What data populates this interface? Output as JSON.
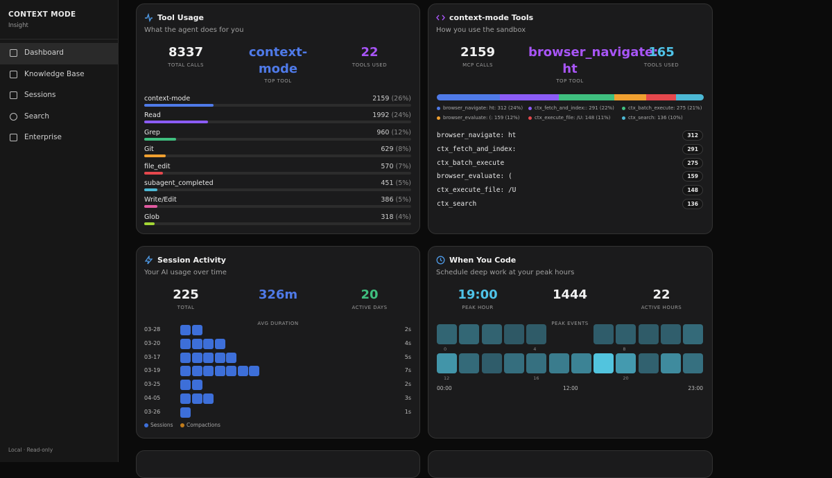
{
  "sidebar": {
    "brand": "CONTEXT MODE",
    "subtitle": "Insight",
    "nav": [
      "Dashboard",
      "Knowledge Base",
      "Sessions",
      "Search",
      "Enterprise"
    ],
    "footer": "Local · Read-only"
  },
  "tool_usage": {
    "title": "Tool Usage",
    "subtitle": "What the agent does for you",
    "stats": [
      {
        "value": "8337",
        "label": "TOTAL CALLS"
      },
      {
        "value": "context-mode",
        "label": "TOP TOOL"
      },
      {
        "value": "22",
        "label": "TOOLS USED"
      }
    ],
    "rows": [
      {
        "name": "context-mode",
        "count": 2159,
        "share": 26,
        "share_label": "(26%)",
        "color": "#4f7ae8"
      },
      {
        "name": "Read",
        "count": 1992,
        "share": 24,
        "share_label": "(24%)",
        "color": "#8b5cf6"
      },
      {
        "name": "Grep",
        "count": 960,
        "share": 12,
        "share_label": "(12%)",
        "color": "#3fbf7f"
      },
      {
        "name": "Git",
        "count": 629,
        "share": 8,
        "share_label": "(8%)",
        "color": "#f0a030"
      },
      {
        "name": "file_edit",
        "count": 570,
        "share": 7,
        "share_label": "(7%)",
        "color": "#e5484d"
      },
      {
        "name": "subagent_completed",
        "count": 451,
        "share": 5,
        "share_label": "(5%)",
        "color": "#4cb8d4"
      },
      {
        "name": "Write/Edit",
        "count": 386,
        "share": 5,
        "share_label": "(5%)",
        "color": "#e05aa0"
      },
      {
        "name": "Glob",
        "count": 318,
        "share": 4,
        "share_label": "(4%)",
        "color": "#a3d635"
      }
    ]
  },
  "sandbox_tools": {
    "title": "context-mode Tools",
    "subtitle": "How you use the sandbox",
    "stats": [
      {
        "value": "2159",
        "label": "MCP CALLS"
      },
      {
        "value": "browser_navigate: ht",
        "label": "TOP TOOL"
      },
      {
        "value": "165",
        "label": "TOOLS USED"
      }
    ],
    "segments": [
      {
        "legend": "browser_navigate: ht: 312 (24%)",
        "count": 312,
        "color": "#4f7ae8"
      },
      {
        "legend": "ctx_fetch_and_index:: 291 (22%)",
        "count": 291,
        "color": "#8b5cf6"
      },
      {
        "legend": "ctx_batch_execute: 275 (21%)",
        "count": 275,
        "color": "#3fbf7f"
      },
      {
        "legend": "browser_evaluate: (: 159 (12%)",
        "count": 159,
        "color": "#f0a030"
      },
      {
        "legend": "ctx_execute_file: /U: 148 (11%)",
        "count": 148,
        "color": "#e5484d"
      },
      {
        "legend": "ctx_search: 136 (10%)",
        "count": 136,
        "color": "#4cb8d4"
      }
    ],
    "list": [
      {
        "name": "browser_navigate: ht",
        "count": 312
      },
      {
        "name": "ctx_fetch_and_index:",
        "count": 291
      },
      {
        "name": "ctx_batch_execute",
        "count": 275
      },
      {
        "name": "browser_evaluate: (",
        "count": 159
      },
      {
        "name": "ctx_execute_file: /U",
        "count": 148
      },
      {
        "name": "ctx_search",
        "count": 136
      }
    ]
  },
  "session_activity": {
    "title": "Session Activity",
    "subtitle": "Your AI usage over time",
    "stats": [
      {
        "value": "225",
        "label": "TOTAL"
      },
      {
        "value": "326m",
        "label": "AVG DURATION"
      },
      {
        "value": "20",
        "label": "ACTIVE DAYS"
      }
    ],
    "rows": [
      {
        "date": "03-28",
        "sessions": 2,
        "label": "2s"
      },
      {
        "date": "03-20",
        "sessions": 4,
        "label": "4s"
      },
      {
        "date": "03-17",
        "sessions": 5,
        "label": "5s"
      },
      {
        "date": "03-19",
        "sessions": 7,
        "label": "7s"
      },
      {
        "date": "03-25",
        "sessions": 2,
        "label": "2s"
      },
      {
        "date": "04-05",
        "sessions": 3,
        "label": "3s"
      },
      {
        "date": "03-26",
        "sessions": 1,
        "label": "1s"
      }
    ],
    "legend": [
      {
        "name": "Sessions",
        "color": "#3d6fd9"
      },
      {
        "name": "Compactions",
        "color": "#c27c1a"
      }
    ]
  },
  "when_you_code": {
    "title": "When You Code",
    "subtitle": "Schedule deep work at your peak hours",
    "stats": [
      {
        "value": "19:00",
        "label": "PEAK HOUR"
      },
      {
        "value": "1444",
        "label": "PEAK EVENTS"
      },
      {
        "value": "22",
        "label": "ACTIVE HOURS"
      }
    ],
    "hours": [
      500,
      520,
      480,
      350,
      380,
      0,
      0,
      400,
      430,
      380,
      420,
      560,
      1000,
      560,
      400,
      600,
      620,
      750,
      820,
      1444,
      1050,
      450,
      900,
      620
    ],
    "hour_ticks": [
      {
        "hour": 0,
        "label": "0"
      },
      {
        "hour": 4,
        "label": "4"
      },
      {
        "hour": 8,
        "label": "8"
      },
      {
        "hour": 12,
        "label": "12"
      },
      {
        "hour": 16,
        "label": "16"
      },
      {
        "hour": 20,
        "label": "20"
      }
    ],
    "axis": [
      "00:00",
      "12:00",
      "23:00"
    ]
  }
}
